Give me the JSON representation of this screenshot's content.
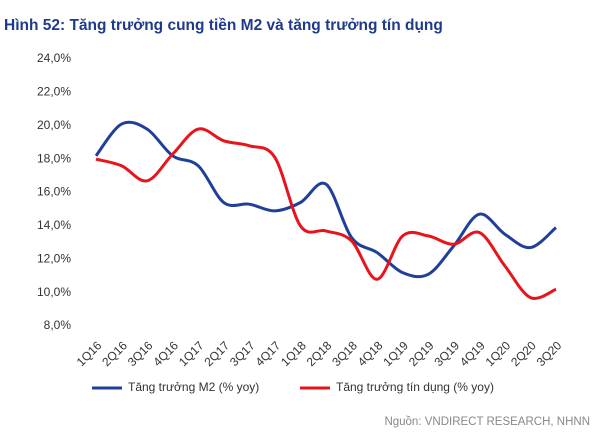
{
  "chart_data": {
    "type": "line",
    "title": "Hình 52: Tăng trưởng cung tiền M2 và tăng trưởng tín dụng",
    "categories": [
      "1Q16",
      "2Q16",
      "3Q16",
      "4Q16",
      "1Q17",
      "2Q17",
      "3Q17",
      "4Q17",
      "1Q18",
      "2Q18",
      "3Q18",
      "4Q18",
      "1Q19",
      "2Q19",
      "3Q19",
      "4Q19",
      "1Q20",
      "2Q20",
      "3Q20"
    ],
    "series": [
      {
        "name": "Tăng trưởng M2 (% yoy)",
        "color": "#1f3f99",
        "values": [
          18.2,
          20.1,
          19.8,
          18.2,
          17.6,
          15.4,
          15.3,
          14.9,
          15.4,
          16.5,
          13.3,
          12.4,
          11.2,
          11.1,
          12.8,
          14.7,
          13.5,
          12.7,
          13.9
        ]
      },
      {
        "name": "Tăng trưởng tín dụng (% yoy)",
        "color": "#e8141c",
        "values": [
          18.0,
          17.6,
          16.7,
          18.3,
          19.8,
          19.1,
          18.8,
          18.1,
          14.0,
          13.7,
          13.1,
          10.8,
          13.4,
          13.4,
          12.9,
          13.6,
          11.6,
          9.7,
          10.2
        ]
      }
    ],
    "ylim": [
      8,
      24
    ],
    "yticks": [
      {
        "value": 8,
        "label": "8,0%"
      },
      {
        "value": 10,
        "label": "10,0%"
      },
      {
        "value": 12,
        "label": "12,0%"
      },
      {
        "value": 14,
        "label": "14,0%"
      },
      {
        "value": 16,
        "label": "16,0%"
      },
      {
        "value": 18,
        "label": "18,0%"
      },
      {
        "value": 20,
        "label": "20,0%"
      },
      {
        "value": 22,
        "label": "22,0%"
      },
      {
        "value": 24,
        "label": "24,0%"
      }
    ],
    "grid": false,
    "legend": "bottom",
    "source": "Nguồn: VNDIRECT RESEARCH, NHNN"
  }
}
